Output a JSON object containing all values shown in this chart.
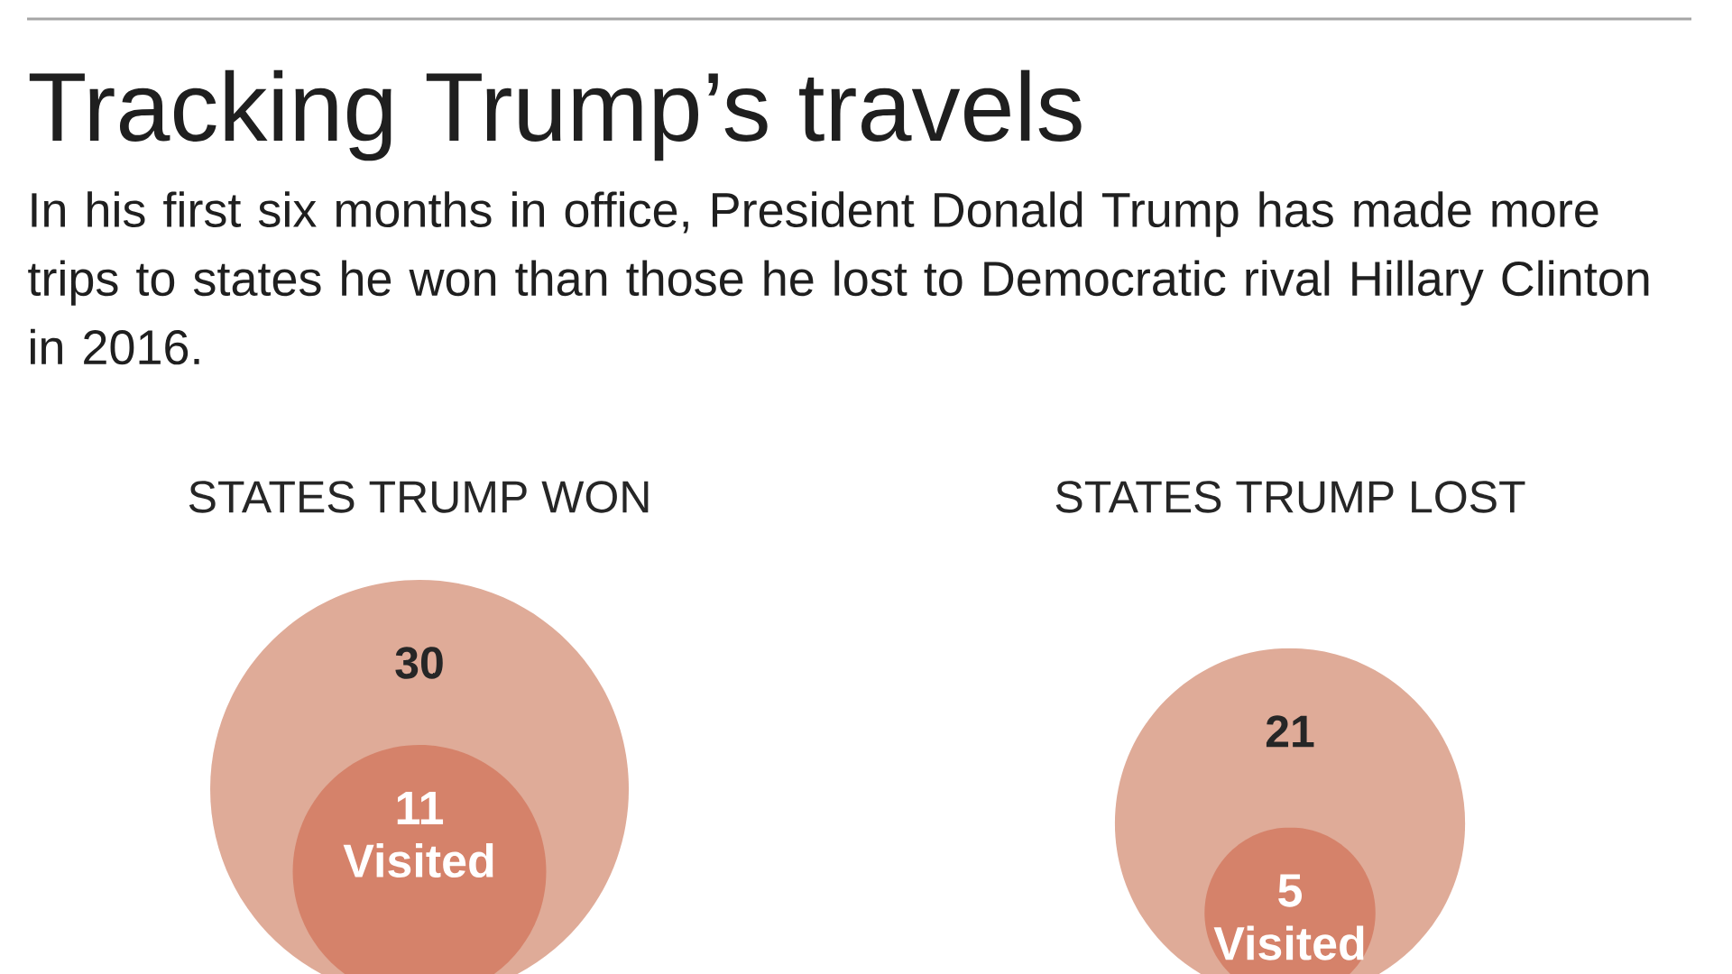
{
  "chart_data": {
    "type": "other",
    "title": "Tracking Trump’s travels",
    "subtitle": "In his first six months in office, President Donald Trump has made more trips to states he won than those he lost to Democratic rival Hillary Clinton in 2016.",
    "categories": [
      "STATES TRUMP WON",
      "STATES TRUMP LOST"
    ],
    "series": [
      {
        "color": "#dfab98",
        "values": [
          30,
          21
        ]
      },
      {
        "name": "Visited",
        "color": "#d5826a",
        "values": [
          11,
          5
        ]
      }
    ],
    "data_labels": true
  }
}
